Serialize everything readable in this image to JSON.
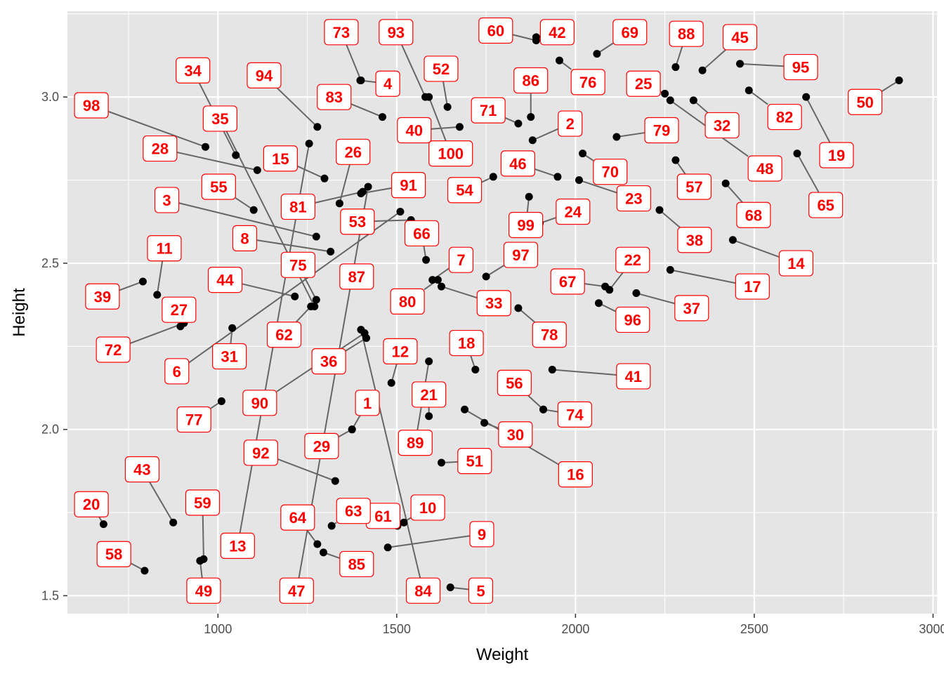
{
  "chart_data": {
    "type": "scatter",
    "title": "",
    "xlabel": "Weight",
    "ylabel": "Height",
    "xlim": [
      579,
      3011
    ],
    "ylim": [
      1.446,
      3.258
    ],
    "x_ticks": [
      1000,
      1500,
      2000,
      2500,
      3000
    ],
    "y_ticks": [
      1.5,
      2.0,
      2.5,
      3.0
    ],
    "x_tick_labels": [
      "1000",
      "1500",
      "2000",
      "2500",
      "3000"
    ],
    "y_tick_labels": [
      "1.5",
      "2.0",
      "2.5",
      "3.0"
    ],
    "grid": true,
    "label_color": "#ff0000",
    "point_color": "#000000",
    "panel_color": "#e5e5e5",
    "segment_color": "#666666",
    "points": [
      {
        "label": "1",
        "x": 1375,
        "y": 2.0,
        "lx": 1418,
        "ly": 2.08
      },
      {
        "label": "2",
        "x": 1880,
        "y": 2.87,
        "lx": 1985,
        "ly": 2.92
      },
      {
        "label": "3",
        "x": 1275,
        "y": 2.58,
        "lx": 857,
        "ly": 2.69
      },
      {
        "label": "4",
        "x": 1398,
        "y": 3.05,
        "lx": 1475,
        "ly": 3.04
      },
      {
        "label": "5",
        "x": 1650,
        "y": 1.525,
        "lx": 1735,
        "ly": 1.515
      },
      {
        "label": "6",
        "x": 1510,
        "y": 2.655,
        "lx": 885,
        "ly": 2.175
      },
      {
        "label": "7",
        "x": 1600,
        "y": 2.45,
        "lx": 1680,
        "ly": 2.51
      },
      {
        "label": "8",
        "x": 1315,
        "y": 2.535,
        "lx": 1075,
        "ly": 2.575
      },
      {
        "label": "9",
        "x": 1475,
        "y": 1.645,
        "lx": 1738,
        "ly": 1.685
      },
      {
        "label": "10",
        "x": 1502,
        "y": 1.71,
        "lx": 1587,
        "ly": 1.765
      },
      {
        "label": "11",
        "x": 830,
        "y": 2.405,
        "lx": 850,
        "ly": 2.545
      },
      {
        "label": "12",
        "x": 1485,
        "y": 2.14,
        "lx": 1510,
        "ly": 2.235
      },
      {
        "label": "13",
        "x": 1255,
        "y": 2.86,
        "lx": 1055,
        "ly": 1.65
      },
      {
        "label": "14",
        "x": 2440,
        "y": 2.57,
        "lx": 2617,
        "ly": 2.5
      },
      {
        "label": "15",
        "x": 1298,
        "y": 2.755,
        "lx": 1175,
        "ly": 2.815
      },
      {
        "label": "16",
        "x": 1690,
        "y": 2.06,
        "lx": 2000,
        "ly": 1.865
      },
      {
        "label": "17",
        "x": 2265,
        "y": 2.48,
        "lx": 2495,
        "ly": 2.43
      },
      {
        "label": "18",
        "x": 1720,
        "y": 2.18,
        "lx": 1695,
        "ly": 2.26
      },
      {
        "label": "19",
        "x": 2645,
        "y": 3.0,
        "lx": 2730,
        "ly": 2.825
      },
      {
        "label": "20",
        "x": 680,
        "y": 1.715,
        "lx": 646,
        "ly": 1.775
      },
      {
        "label": "21",
        "x": 1590,
        "y": 2.04,
        "lx": 1590,
        "ly": 2.105
      },
      {
        "label": "22",
        "x": 2095,
        "y": 2.42,
        "lx": 2160,
        "ly": 2.51
      },
      {
        "label": "23",
        "x": 2010,
        "y": 2.75,
        "lx": 2163,
        "ly": 2.695
      },
      {
        "label": "24",
        "x": 1900,
        "y": 2.62,
        "lx": 1993,
        "ly": 2.655
      },
      {
        "label": "25",
        "x": 2250,
        "y": 3.01,
        "lx": 2190,
        "ly": 3.04
      },
      {
        "label": "26",
        "x": 1340,
        "y": 2.68,
        "lx": 1378,
        "ly": 2.835
      },
      {
        "label": "27",
        "x": 895,
        "y": 2.31,
        "lx": 891,
        "ly": 2.36
      },
      {
        "label": "28",
        "x": 1110,
        "y": 2.78,
        "lx": 838,
        "ly": 2.845
      },
      {
        "label": "29",
        "x": 1375,
        "y": 2.0,
        "lx": 1290,
        "ly": 1.95
      },
      {
        "label": "30",
        "x": 1745,
        "y": 2.02,
        "lx": 1832,
        "ly": 1.985
      },
      {
        "label": "31",
        "x": 1040,
        "y": 2.305,
        "lx": 1032,
        "ly": 2.22
      },
      {
        "label": "32",
        "x": 2330,
        "y": 2.99,
        "lx": 2410,
        "ly": 2.915
      },
      {
        "label": "33",
        "x": 1625,
        "y": 2.43,
        "lx": 1772,
        "ly": 2.38
      },
      {
        "label": "34",
        "x": 1050,
        "y": 2.825,
        "lx": 930,
        "ly": 3.08
      },
      {
        "label": "35",
        "x": 1270,
        "y": 2.37,
        "lx": 1006,
        "ly": 2.935
      },
      {
        "label": "36",
        "x": 1415,
        "y": 2.275,
        "lx": 1310,
        "ly": 2.205
      },
      {
        "label": "37",
        "x": 2170,
        "y": 2.41,
        "lx": 2325,
        "ly": 2.365
      },
      {
        "label": "38",
        "x": 2235,
        "y": 2.66,
        "lx": 2333,
        "ly": 2.57
      },
      {
        "label": "39",
        "x": 790,
        "y": 2.445,
        "lx": 677,
        "ly": 2.4
      },
      {
        "label": "40",
        "x": 1676,
        "y": 2.91,
        "lx": 1549,
        "ly": 2.9
      },
      {
        "label": "41",
        "x": 1935,
        "y": 2.18,
        "lx": 2162,
        "ly": 2.16
      },
      {
        "label": "42",
        "x": 1890,
        "y": 3.18,
        "lx": 1949,
        "ly": 3.195
      },
      {
        "label": "43",
        "x": 875,
        "y": 1.72,
        "lx": 788,
        "ly": 1.88
      },
      {
        "label": "44",
        "x": 1215,
        "y": 2.4,
        "lx": 1020,
        "ly": 2.45
      },
      {
        "label": "45",
        "x": 2355,
        "y": 3.08,
        "lx": 2460,
        "ly": 3.18
      },
      {
        "label": "46",
        "x": 1950,
        "y": 2.76,
        "lx": 1839,
        "ly": 2.8
      },
      {
        "label": "47",
        "x": 1420,
        "y": 2.73,
        "lx": 1220,
        "ly": 1.515
      },
      {
        "label": "48",
        "x": 2265,
        "y": 2.99,
        "lx": 2530,
        "ly": 2.785
      },
      {
        "label": "49",
        "x": 950,
        "y": 1.605,
        "lx": 960,
        "ly": 1.515
      },
      {
        "label": "50",
        "x": 2905,
        "y": 3.05,
        "lx": 2810,
        "ly": 2.985
      },
      {
        "label": "51",
        "x": 1625,
        "y": 1.9,
        "lx": 1718,
        "ly": 1.905
      },
      {
        "label": "52",
        "x": 1642,
        "y": 2.97,
        "lx": 1624,
        "ly": 3.085
      },
      {
        "label": "53",
        "x": 1540,
        "y": 2.63,
        "lx": 1390,
        "ly": 2.625
      },
      {
        "label": "54",
        "x": 1770,
        "y": 2.76,
        "lx": 1690,
        "ly": 2.72
      },
      {
        "label": "55",
        "x": 1100,
        "y": 2.66,
        "lx": 1002,
        "ly": 2.73
      },
      {
        "label": "56",
        "x": 1910,
        "y": 2.06,
        "lx": 1829,
        "ly": 2.14
      },
      {
        "label": "57",
        "x": 2280,
        "y": 2.81,
        "lx": 2332,
        "ly": 2.73
      },
      {
        "label": "58",
        "x": 795,
        "y": 1.575,
        "lx": 709,
        "ly": 1.625
      },
      {
        "label": "59",
        "x": 960,
        "y": 1.61,
        "lx": 957,
        "ly": 1.78
      },
      {
        "label": "60",
        "x": 1890,
        "y": 3.17,
        "lx": 1777,
        "ly": 3.2
      },
      {
        "label": "61",
        "x": 1520,
        "y": 1.72,
        "lx": 1462,
        "ly": 1.74
      },
      {
        "label": "62",
        "x": 1260,
        "y": 2.37,
        "lx": 1185,
        "ly": 2.285
      },
      {
        "label": "63",
        "x": 1318,
        "y": 1.71,
        "lx": 1379,
        "ly": 1.755
      },
      {
        "label": "64",
        "x": 1278,
        "y": 1.655,
        "lx": 1223,
        "ly": 1.735
      },
      {
        "label": "65",
        "x": 2620,
        "y": 2.83,
        "lx": 2700,
        "ly": 2.675
      },
      {
        "label": "66",
        "x": 1582,
        "y": 2.51,
        "lx": 1570,
        "ly": 2.59
      },
      {
        "label": "67",
        "x": 2083,
        "y": 2.43,
        "lx": 1978,
        "ly": 2.445
      },
      {
        "label": "68",
        "x": 2420,
        "y": 2.74,
        "lx": 2498,
        "ly": 2.645
      },
      {
        "label": "69",
        "x": 2060,
        "y": 3.13,
        "lx": 2152,
        "ly": 3.195
      },
      {
        "label": "70",
        "x": 2020,
        "y": 2.83,
        "lx": 2097,
        "ly": 2.775
      },
      {
        "label": "71",
        "x": 1840,
        "y": 2.92,
        "lx": 1756,
        "ly": 2.96
      },
      {
        "label": "72",
        "x": 905,
        "y": 2.32,
        "lx": 707,
        "ly": 2.24
      },
      {
        "label": "73",
        "x": 1400,
        "y": 3.05,
        "lx": 1345,
        "ly": 3.195
      },
      {
        "label": "74",
        "x": 1910,
        "y": 2.06,
        "lx": 1998,
        "ly": 2.045
      },
      {
        "label": "75",
        "x": 1275,
        "y": 2.39,
        "lx": 1224,
        "ly": 2.495
      },
      {
        "label": "76",
        "x": 1955,
        "y": 3.11,
        "lx": 2035,
        "ly": 3.045
      },
      {
        "label": "77",
        "x": 1010,
        "y": 2.085,
        "lx": 933,
        "ly": 2.03
      },
      {
        "label": "78",
        "x": 1840,
        "y": 2.365,
        "lx": 1927,
        "ly": 2.285
      },
      {
        "label": "79",
        "x": 2115,
        "y": 2.88,
        "lx": 2241,
        "ly": 2.9
      },
      {
        "label": "80",
        "x": 1615,
        "y": 2.45,
        "lx": 1530,
        "ly": 2.385
      },
      {
        "label": "81",
        "x": 1405,
        "y": 2.715,
        "lx": 1224,
        "ly": 2.67
      },
      {
        "label": "82",
        "x": 2485,
        "y": 3.02,
        "lx": 2585,
        "ly": 2.94
      },
      {
        "label": "83",
        "x": 1460,
        "y": 2.94,
        "lx": 1325,
        "ly": 3.0
      },
      {
        "label": "84",
        "x": 1400,
        "y": 2.3,
        "lx": 1574,
        "ly": 1.515
      },
      {
        "label": "85",
        "x": 1295,
        "y": 1.63,
        "lx": 1388,
        "ly": 1.595
      },
      {
        "label": "86",
        "x": 1875,
        "y": 2.94,
        "lx": 1875,
        "ly": 3.05
      },
      {
        "label": "87",
        "x": 1400,
        "y": 2.45,
        "lx": 1388,
        "ly": 2.46
      },
      {
        "label": "88",
        "x": 2280,
        "y": 3.09,
        "lx": 2310,
        "ly": 3.19
      },
      {
        "label": "89",
        "x": 1590,
        "y": 2.205,
        "lx": 1552,
        "ly": 1.96
      },
      {
        "label": "90",
        "x": 1410,
        "y": 2.29,
        "lx": 1117,
        "ly": 2.08
      },
      {
        "label": "91",
        "x": 1400,
        "y": 2.71,
        "lx": 1533,
        "ly": 2.735
      },
      {
        "label": "92",
        "x": 1328,
        "y": 1.845,
        "lx": 1120,
        "ly": 1.93
      },
      {
        "label": "93",
        "x": 1580,
        "y": 3.0,
        "lx": 1498,
        "ly": 3.195
      },
      {
        "label": "94",
        "x": 1278,
        "y": 2.91,
        "lx": 1129,
        "ly": 3.065
      },
      {
        "label": "95",
        "x": 2460,
        "y": 3.1,
        "lx": 2630,
        "ly": 3.09
      },
      {
        "label": "96",
        "x": 2065,
        "y": 2.38,
        "lx": 2160,
        "ly": 2.33
      },
      {
        "label": "97",
        "x": 1750,
        "y": 2.46,
        "lx": 1847,
        "ly": 2.525
      },
      {
        "label": "98",
        "x": 965,
        "y": 2.85,
        "lx": 646,
        "ly": 2.975
      },
      {
        "label": "99",
        "x": 1870,
        "y": 2.7,
        "lx": 1861,
        "ly": 2.615
      },
      {
        "label": "100",
        "x": 1590,
        "y": 3.0,
        "lx": 1651,
        "ly": 2.83
      }
    ]
  }
}
